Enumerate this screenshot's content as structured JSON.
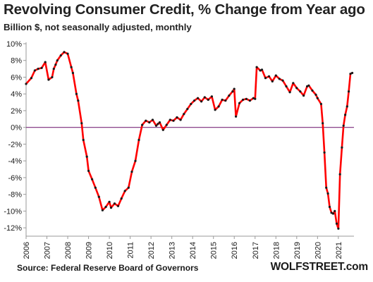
{
  "chart_data": {
    "type": "line",
    "title": "Revolving Consumer Credit, % Change from Year ago",
    "subtitle": "Billion $, not seasonally adjusted, monthly",
    "xlabel": "",
    "ylabel": "",
    "xlim": [
      2006.0,
      2021.75
    ],
    "ylim": [
      -13,
      10
    ],
    "y_ticks": [
      10,
      8,
      6,
      4,
      2,
      0,
      -2,
      -4,
      -6,
      -8,
      -10,
      -12
    ],
    "y_tick_labels": [
      "10%",
      "8%",
      "6%",
      "4%",
      "2%",
      "0%",
      "-2%",
      "-4%",
      "-6%",
      "-8%",
      "-10%",
      "-12%"
    ],
    "x_ticks": [
      2006,
      2007,
      2008,
      2009,
      2010,
      2011,
      2012,
      2013,
      2014,
      2015,
      2016,
      2017,
      2018,
      2019,
      2020,
      2021
    ],
    "x_tick_labels": [
      "2006",
      "2007",
      "2008",
      "2009",
      "2010",
      "2011",
      "2012",
      "2013",
      "2014",
      "2015",
      "2016",
      "2017",
      "2018",
      "2019",
      "2020",
      "2021"
    ],
    "grid": false,
    "legend": "none",
    "colors": {
      "line": "#ff0000",
      "markers": "#1a1a1a",
      "zero_line": "#7a2a7a",
      "axis": "#9a9a9a"
    },
    "series": [
      {
        "x": [
          2006.0,
          2006.25,
          2006.42,
          2006.58,
          2006.75,
          2006.92,
          2007.08,
          2007.25,
          2007.33,
          2007.42,
          2007.5,
          2007.67,
          2007.83,
          2008.0,
          2008.17,
          2008.25,
          2008.42,
          2008.5,
          2008.67,
          2008.75,
          2008.92,
          2009.0,
          2009.17,
          2009.33,
          2009.5,
          2009.67,
          2009.83,
          2010.0,
          2010.08,
          2010.25,
          2010.42,
          2010.58,
          2010.75,
          2010.92,
          2011.08,
          2011.25,
          2011.42,
          2011.58,
          2011.75,
          2011.92,
          2012.08,
          2012.25,
          2012.33,
          2012.42,
          2012.58,
          2012.75,
          2012.92,
          2013.08,
          2013.25,
          2013.42,
          2013.58,
          2013.75,
          2013.92,
          2014.08,
          2014.25,
          2014.42,
          2014.58,
          2014.75,
          2014.92,
          2015.08,
          2015.25,
          2015.42,
          2015.58,
          2015.75,
          2015.92,
          2016.0,
          2016.08,
          2016.25,
          2016.42,
          2016.58,
          2016.75,
          2016.92,
          2017.0,
          2017.08,
          2017.25,
          2017.33,
          2017.5,
          2017.67,
          2017.83,
          2018.0,
          2018.17,
          2018.33,
          2018.5,
          2018.67,
          2018.83,
          2019.0,
          2019.17,
          2019.33,
          2019.5,
          2019.58,
          2019.75,
          2019.92,
          2020.0,
          2020.17,
          2020.25,
          2020.33,
          2020.42,
          2020.5,
          2020.58,
          2020.67,
          2020.75,
          2020.83,
          2020.92,
          2021.0,
          2021.08,
          2021.17,
          2021.25,
          2021.33,
          2021.42,
          2021.5,
          2021.58,
          2021.67
        ],
        "y": [
          5.2,
          5.9,
          6.8,
          7.0,
          7.1,
          7.8,
          5.7,
          6.0,
          7.0,
          7.5,
          8.0,
          8.6,
          9.0,
          8.8,
          7.2,
          6.5,
          4.0,
          3.2,
          0.5,
          -1.5,
          -3.5,
          -5.2,
          -6.2,
          -7.2,
          -8.3,
          -9.9,
          -9.5,
          -8.9,
          -9.6,
          -9.1,
          -9.4,
          -8.5,
          -7.6,
          -7.2,
          -5.3,
          -4.0,
          -1.5,
          0.3,
          0.8,
          0.6,
          0.9,
          0.2,
          0.4,
          0.6,
          -0.3,
          0.3,
          0.9,
          0.8,
          1.2,
          0.9,
          1.6,
          2.2,
          2.8,
          3.2,
          3.5,
          3.1,
          3.6,
          3.3,
          3.7,
          2.1,
          2.5,
          3.3,
          3.2,
          3.8,
          4.3,
          4.6,
          1.3,
          2.9,
          3.3,
          3.4,
          3.2,
          3.5,
          3.4,
          7.2,
          6.8,
          6.9,
          5.9,
          6.1,
          5.5,
          6.2,
          5.8,
          5.6,
          4.9,
          4.2,
          5.3,
          4.7,
          4.3,
          3.8,
          4.9,
          5.0,
          4.4,
          3.9,
          3.5,
          2.8,
          0.5,
          -3.0,
          -7.2,
          -7.9,
          -9.5,
          -10.2,
          -10.3,
          -10.0,
          -11.5,
          -12.1,
          -5.6,
          -2.4,
          0.2,
          1.5,
          2.5,
          4.3,
          6.4,
          6.5
        ]
      }
    ]
  },
  "footer": {
    "source": "Source: Federal Reserve Board of Governors",
    "brand": "WOLFSTREET.com"
  }
}
